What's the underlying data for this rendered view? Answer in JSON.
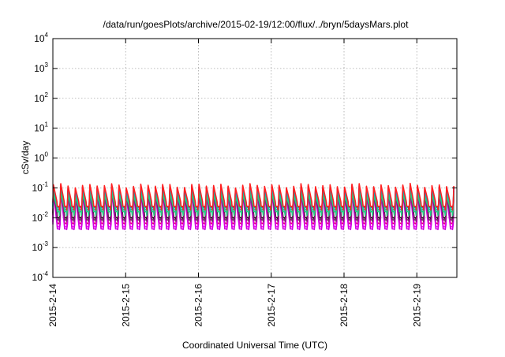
{
  "chart_data": {
    "type": "line",
    "title": "/data/run/goesPlots/archive/2015-02-19/12:00/flux/../bryn/5daysMars.plot",
    "xlabel": "Coordinated Universal Time (UTC)",
    "ylabel": "cSv/day",
    "yscale": "log",
    "ylim": [
      0.0001,
      10000
    ],
    "xlim_days": [
      0,
      5.55
    ],
    "grid": true,
    "legend": "none",
    "yticks": [
      {
        "base": "10",
        "exp": "-4",
        "value": 0.0001
      },
      {
        "base": "10",
        "exp": "-3",
        "value": 0.001
      },
      {
        "base": "10",
        "exp": "-2",
        "value": 0.01
      },
      {
        "base": "10",
        "exp": "-1",
        "value": 0.1
      },
      {
        "base": "10",
        "exp": "0",
        "value": 1
      },
      {
        "base": "10",
        "exp": "1",
        "value": 10
      },
      {
        "base": "10",
        "exp": "2",
        "value": 100
      },
      {
        "base": "10",
        "exp": "3",
        "value": 1000
      },
      {
        "base": "10",
        "exp": "4",
        "value": 10000
      }
    ],
    "xticks": [
      {
        "label": "2015-2-14",
        "day": 0
      },
      {
        "label": "2015-2-15",
        "day": 1
      },
      {
        "label": "2015-2-16",
        "day": 2
      },
      {
        "label": "2015-2-17",
        "day": 3
      },
      {
        "label": "2015-2-18",
        "day": 4
      },
      {
        "label": "2015-2-19",
        "day": 5
      }
    ],
    "pattern": {
      "period_days": 0.1,
      "cycles": 56
    },
    "series": [
      {
        "color": "#e0006e",
        "peak": 0.11,
        "base": 0.0095,
        "gap": 0.0065,
        "dip": 0.006
      },
      {
        "color": "#ff00ff",
        "peak": 0.085,
        "base": 0.0072,
        "gap": 0.005,
        "dip": 0.005
      },
      {
        "color": "#d000e0",
        "peak": 0.065,
        "base": 0.006,
        "gap": 0.0042,
        "dip": 0.004
      },
      {
        "color": "#1e2bb0",
        "peak": 0.1,
        "base": 0.023,
        "gap": 0.016,
        "dip": 0.013
      },
      {
        "color": "#000000",
        "peak": 0.08,
        "base": 0.014,
        "gap": 0.01,
        "dip": 0.0085
      },
      {
        "color": "#7f1f6f",
        "peak": 0.07,
        "base": 0.012,
        "gap": 0.0085,
        "dip": 0.0075
      },
      {
        "color": "#0080ff",
        "peak": 0.09,
        "base": 0.03,
        "gap": 0.022,
        "dip": 0.017
      },
      {
        "color": "#00b0c8",
        "peak": 0.075,
        "base": 0.026,
        "gap": 0.019,
        "dip": 0.015
      },
      {
        "color": "#20d080",
        "peak": 0.06,
        "base": 0.021,
        "gap": 0.016,
        "dip": 0.012
      },
      {
        "color": "#ff2020",
        "peak": 0.12,
        "base": 0.032,
        "gap": 0.024,
        "dip": 0.018
      }
    ]
  }
}
